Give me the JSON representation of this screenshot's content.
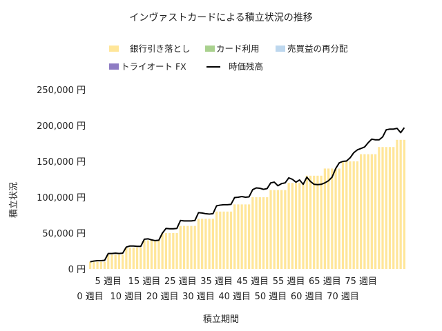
{
  "chart_data": {
    "type": "bar",
    "title": "インヴァストカードによる積立状況の推移",
    "xlabel": "積立期間",
    "ylabel": "積立状況",
    "y_unit": "円",
    "ylim": [
      0,
      250000
    ],
    "yticks": [
      0,
      50000,
      100000,
      150000,
      200000,
      250000
    ],
    "ytick_labels": [
      "0 円",
      "50,000 円",
      "100,000 円",
      "150,000 円",
      "200,000 円",
      "250,000 円"
    ],
    "x_start_week": 0,
    "x_tick_labels_upper": [
      "5 週目",
      "15 週目",
      "25 週目",
      "35 週目",
      "45 週目",
      "55 週目",
      "65 週目",
      "75 週目"
    ],
    "x_tick_labels_lower": [
      "0 週目",
      "10 週目",
      "20 週目",
      "30 週目",
      "40 週目",
      "50 週目",
      "60 週目",
      "70 週目"
    ],
    "legend_position": "top",
    "stacked": true,
    "series": [
      {
        "name": "銀行引き落とし",
        "color": "#FFE699",
        "kind": "bar",
        "values": [
          10000,
          10000,
          10000,
          10000,
          10000,
          20000,
          20000,
          20000,
          20000,
          20000,
          30000,
          30000,
          30000,
          30000,
          30000,
          40000,
          40000,
          40000,
          40000,
          40000,
          50000,
          50000,
          50000,
          50000,
          50000,
          60000,
          60000,
          60000,
          60000,
          60000,
          70000,
          70000,
          70000,
          70000,
          70000,
          80000,
          80000,
          80000,
          80000,
          80000,
          90000,
          90000,
          90000,
          90000,
          90000,
          100000,
          100000,
          100000,
          100000,
          100000,
          110000,
          110000,
          110000,
          110000,
          110000,
          120000,
          120000,
          120000,
          120000,
          120000,
          130000,
          130000,
          130000,
          130000,
          130000,
          140000,
          140000,
          140000,
          140000,
          140000,
          150000,
          150000,
          150000,
          150000,
          150000,
          160000,
          160000,
          160000,
          160000,
          160000,
          170000,
          170000,
          170000,
          170000,
          170000,
          180000,
          180000,
          180000
        ]
      },
      {
        "name": "カード利用",
        "color": "#A9D18E",
        "kind": "bar",
        "values": [
          0,
          0,
          0,
          0,
          0,
          0,
          0,
          0,
          0,
          0,
          0,
          0,
          0,
          0,
          0,
          0,
          0,
          0,
          0,
          0,
          0,
          0,
          0,
          0,
          0,
          0,
          0,
          0,
          0,
          0,
          0,
          0,
          0,
          0,
          0,
          0,
          0,
          0,
          0,
          0,
          0,
          0,
          0,
          0,
          0,
          0,
          0,
          0,
          0,
          0,
          0,
          0,
          0,
          0,
          0,
          0,
          0,
          0,
          0,
          0,
          0,
          0,
          0,
          0,
          0,
          0,
          0,
          0,
          0,
          0,
          0,
          0,
          0,
          0,
          0,
          0,
          0,
          0,
          0,
          0,
          0,
          0,
          0,
          0,
          0,
          0,
          0,
          0
        ]
      },
      {
        "name": "売買益の再分配",
        "color": "#BDD7EE",
        "kind": "bar",
        "values": [
          0,
          0,
          0,
          0,
          0,
          0,
          0,
          0,
          0,
          0,
          0,
          0,
          0,
          0,
          0,
          0,
          0,
          0,
          0,
          0,
          0,
          0,
          0,
          0,
          0,
          0,
          0,
          0,
          0,
          0,
          0,
          0,
          0,
          0,
          0,
          0,
          0,
          0,
          0,
          0,
          0,
          0,
          0,
          0,
          0,
          0,
          0,
          0,
          0,
          0,
          0,
          0,
          0,
          0,
          0,
          0,
          0,
          0,
          0,
          0,
          0,
          0,
          0,
          0,
          0,
          0,
          0,
          0,
          0,
          0,
          0,
          0,
          0,
          0,
          0,
          0,
          0,
          0,
          0,
          0,
          0,
          0,
          0,
          0,
          0,
          0,
          0,
          0
        ]
      },
      {
        "name": "トライオート FX",
        "color": "#8E7CC3",
        "kind": "bar",
        "values": [
          0,
          0,
          0,
          0,
          0,
          0,
          0,
          0,
          0,
          0,
          0,
          0,
          0,
          0,
          0,
          0,
          0,
          0,
          0,
          0,
          0,
          0,
          0,
          0,
          0,
          0,
          0,
          0,
          0,
          0,
          0,
          0,
          0,
          0,
          0,
          0,
          0,
          0,
          0,
          0,
          0,
          0,
          0,
          0,
          0,
          0,
          0,
          0,
          0,
          0,
          0,
          0,
          0,
          0,
          0,
          0,
          0,
          0,
          0,
          0,
          0,
          0,
          0,
          0,
          0,
          0,
          0,
          0,
          0,
          0,
          0,
          0,
          0,
          0,
          0,
          0,
          0,
          0,
          0,
          0,
          0,
          0,
          0,
          0,
          0,
          0,
          0,
          0
        ]
      },
      {
        "name": "時価残高",
        "color": "#000000",
        "kind": "line",
        "values": [
          10000,
          11000,
          11500,
          11500,
          12000,
          21500,
          21500,
          22000,
          21500,
          22000,
          30500,
          32000,
          32000,
          31500,
          31500,
          41500,
          42000,
          40500,
          39500,
          40000,
          50000,
          56500,
          56000,
          56000,
          56500,
          67500,
          67000,
          67000,
          67000,
          67500,
          78500,
          78000,
          77000,
          76500,
          77000,
          88000,
          89000,
          89500,
          89500,
          90000,
          99500,
          100000,
          101000,
          100000,
          100500,
          110500,
          113000,
          112500,
          111000,
          112000,
          120000,
          121000,
          116000,
          119000,
          120000,
          127000,
          125000,
          121000,
          124000,
          118000,
          128000,
          122000,
          118000,
          117500,
          118000,
          120000,
          123000,
          128000,
          140000,
          148000,
          150000,
          150500,
          155000,
          162000,
          166000,
          168000,
          170000,
          176000,
          181000,
          180000,
          180000,
          184000,
          194000,
          195000,
          195000,
          196000,
          190000,
          197000
        ]
      }
    ],
    "card_top_values": [
      0,
      0,
      0,
      0,
      0,
      0,
      0,
      0,
      0,
      0,
      0,
      0,
      0,
      0,
      0,
      0,
      0,
      0,
      0,
      0,
      0,
      0,
      0,
      0,
      0,
      0,
      0,
      0,
      0,
      0,
      0,
      0,
      0,
      0,
      0,
      0,
      0,
      0,
      0,
      0,
      0,
      0,
      0,
      0,
      0,
      0,
      0,
      0,
      0,
      0,
      0,
      0,
      0,
      0,
      0,
      0,
      0,
      0,
      0,
      0,
      0,
      0,
      0,
      0,
      0,
      0,
      0,
      0,
      0,
      0,
      0,
      0,
      0,
      0,
      0,
      0,
      0,
      0,
      0,
      0,
      0,
      0,
      0,
      0,
      0,
      0,
      0,
      0
    ]
  }
}
